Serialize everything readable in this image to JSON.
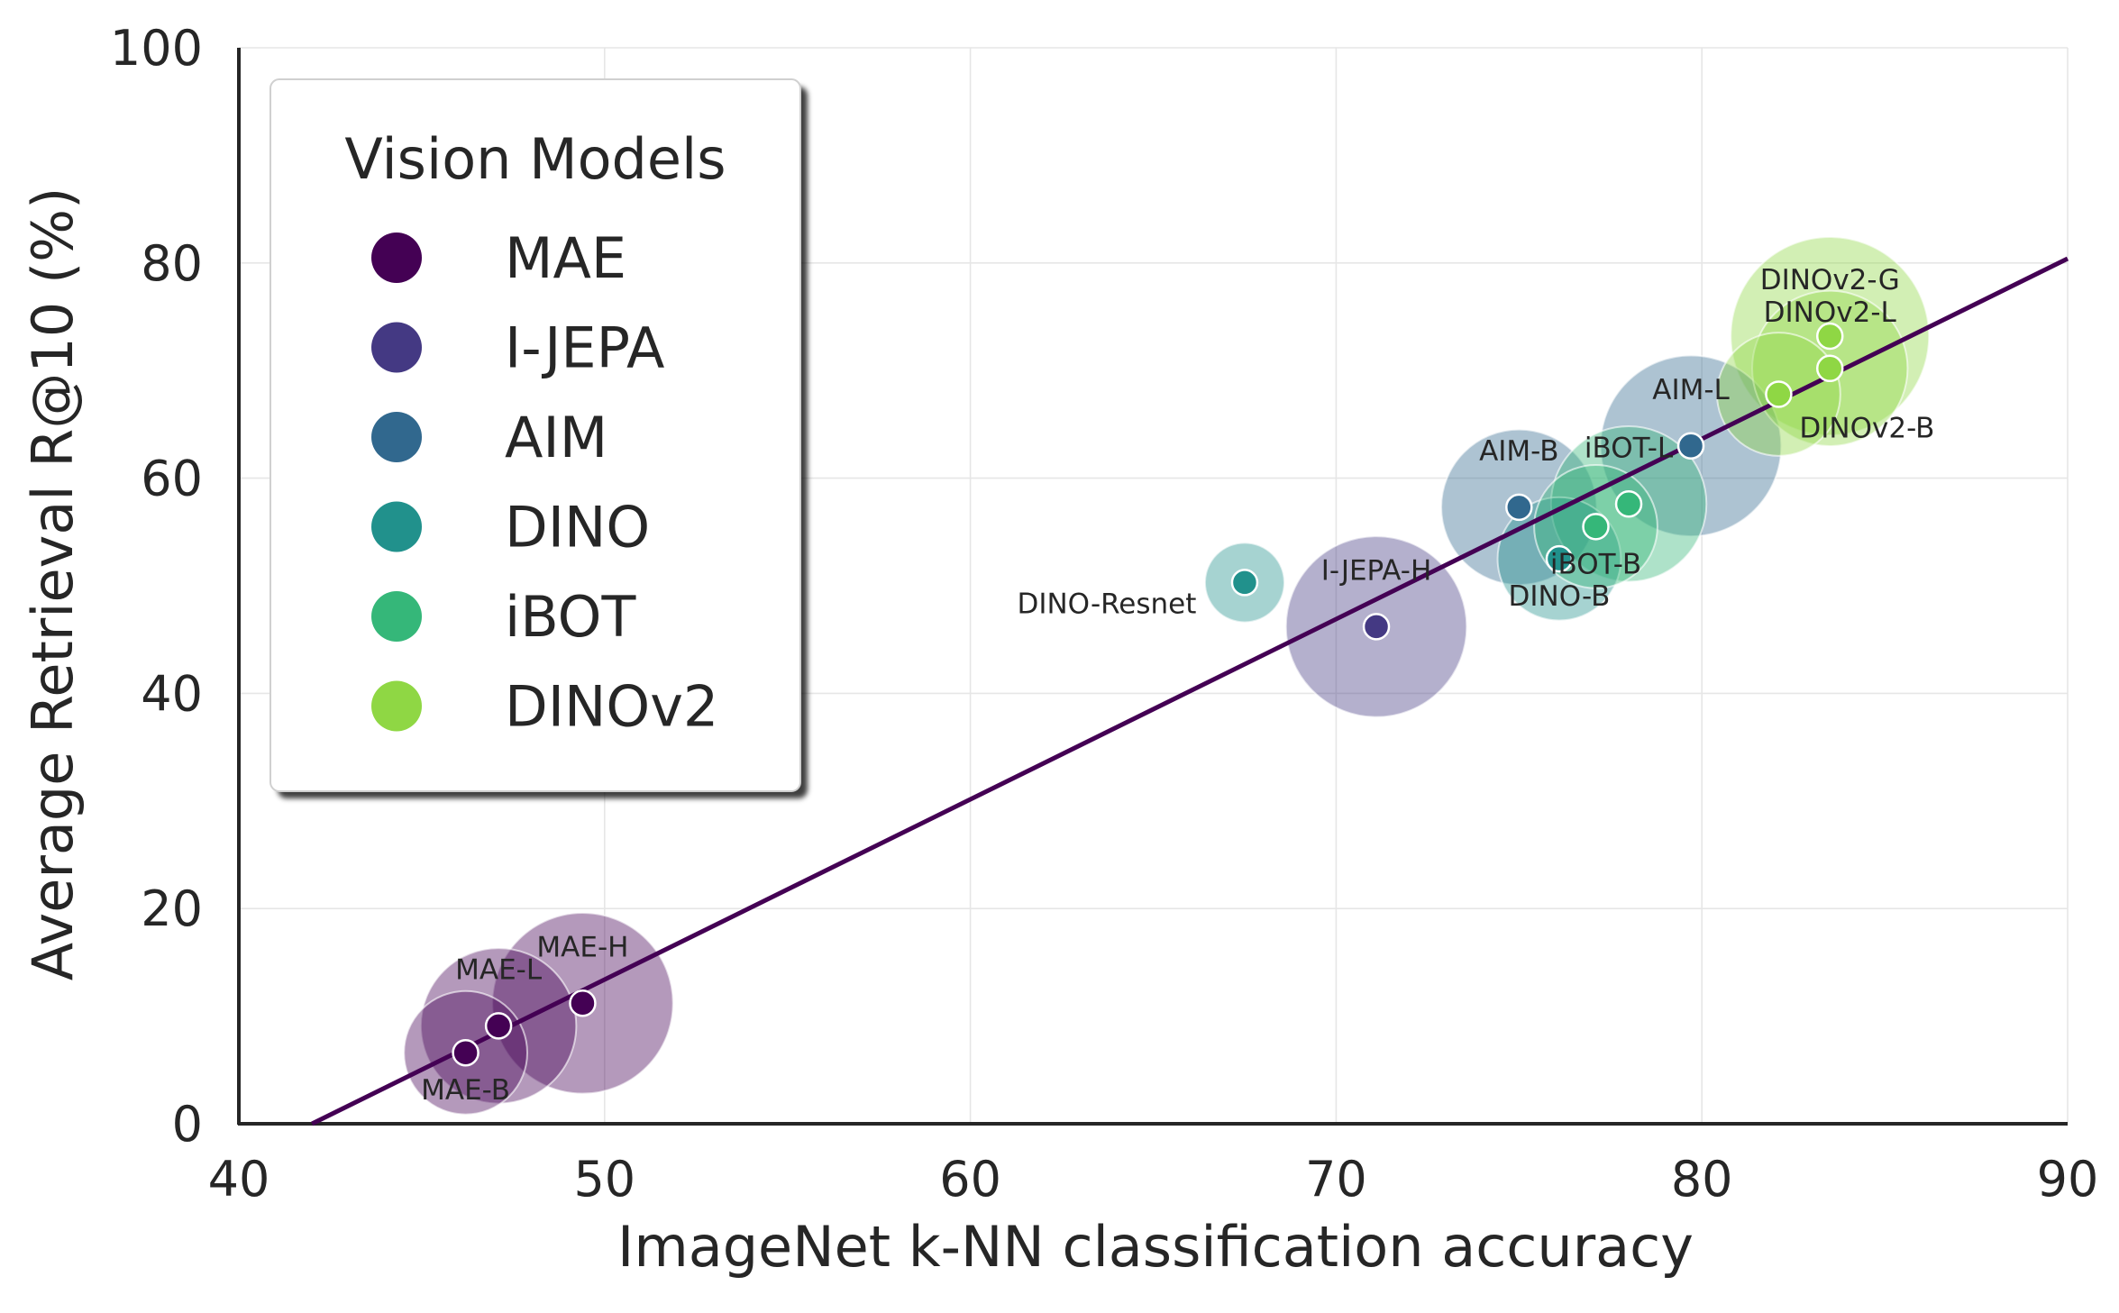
{
  "chart_data": {
    "type": "scatter",
    "title": "",
    "xlabel": "ImageNet k-NN classification accuracy",
    "ylabel": "Average Retrieval R@10 (%)",
    "xlim": [
      40,
      90
    ],
    "ylim": [
      0,
      100
    ],
    "xticks": [
      40,
      50,
      60,
      70,
      80,
      90
    ],
    "yticks": [
      0,
      20,
      40,
      60,
      80,
      100
    ],
    "grid": true,
    "legend": {
      "title": "Vision Models",
      "position": "top-left",
      "entries": [
        {
          "name": "MAE",
          "color": "#440154"
        },
        {
          "name": "I-JEPA",
          "color": "#443983"
        },
        {
          "name": "AIM",
          "color": "#31688e"
        },
        {
          "name": "DINO",
          "color": "#21918c"
        },
        {
          "name": "iBOT",
          "color": "#35b779"
        },
        {
          "name": "DINOv2",
          "color": "#8fd744"
        }
      ]
    },
    "fit_line": {
      "color": "#440154",
      "points": [
        [
          42,
          0
        ],
        [
          90,
          80.4
        ]
      ]
    },
    "points": [
      {
        "label": "MAE-B",
        "family": "MAE",
        "x": 46.2,
        "y": 6.6,
        "size": 0.3,
        "label_pos": "below"
      },
      {
        "label": "MAE-L",
        "family": "MAE",
        "x": 47.1,
        "y": 9.1,
        "size": 0.55,
        "label_pos": "above"
      },
      {
        "label": "MAE-H",
        "family": "MAE",
        "x": 49.4,
        "y": 11.2,
        "size": 0.8,
        "label_pos": "above"
      },
      {
        "label": "I-JEPA-H",
        "family": "I-JEPA",
        "x": 71.1,
        "y": 46.2,
        "size": 0.8,
        "label_pos": "above"
      },
      {
        "label": "AIM-B",
        "family": "AIM",
        "x": 75.0,
        "y": 57.3,
        "size": 0.55,
        "label_pos": "above"
      },
      {
        "label": "AIM-L",
        "family": "AIM",
        "x": 79.7,
        "y": 63.0,
        "size": 0.8,
        "label_pos": "above"
      },
      {
        "label": "DINO-Resnet",
        "family": "DINO",
        "x": 67.5,
        "y": 50.3,
        "size": 0.08,
        "label_pos": "below-left"
      },
      {
        "label": "DINO-B",
        "family": "DINO",
        "x": 76.1,
        "y": 52.5,
        "size": 0.3,
        "label_pos": "below"
      },
      {
        "label": "iBOT-B",
        "family": "iBOT",
        "x": 77.1,
        "y": 55.5,
        "size": 0.3,
        "label_pos": "below"
      },
      {
        "label": "iBOT-L",
        "family": "iBOT",
        "x": 78.0,
        "y": 57.6,
        "size": 0.55,
        "label_pos": "above"
      },
      {
        "label": "DINOv2-B",
        "family": "DINOv2",
        "x": 82.1,
        "y": 67.8,
        "size": 0.3,
        "label_pos": "below-right"
      },
      {
        "label": "DINOv2-L",
        "family": "DINOv2",
        "x": 83.5,
        "y": 70.2,
        "size": 0.55,
        "label_pos": "above"
      },
      {
        "label": "DINOv2-G",
        "family": "DINOv2",
        "x": 83.5,
        "y": 73.2,
        "size": 1.0,
        "label_pos": "above"
      }
    ]
  }
}
